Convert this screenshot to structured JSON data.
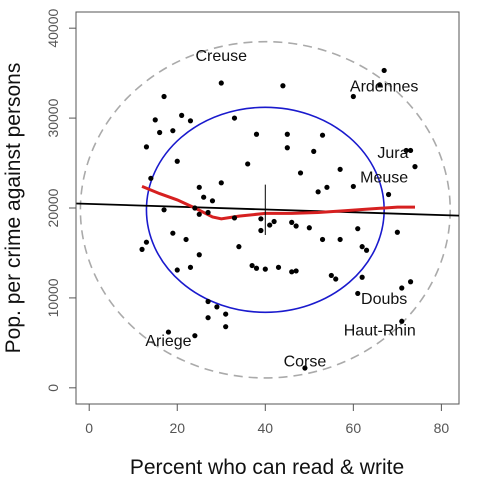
{
  "chart_data": {
    "type": "scatter",
    "title": "",
    "xlabel": "Percent who can read & write",
    "ylabel": "Pop. per crime against persons",
    "xlim": [
      -3,
      84
    ],
    "ylim": [
      -1800,
      41800
    ],
    "x_ticks": [
      0,
      20,
      40,
      60,
      80
    ],
    "y_ticks": [
      0,
      10000,
      20000,
      30000,
      40000
    ],
    "grid": false,
    "legend": "none",
    "points": [
      {
        "x": 12,
        "y": 15400
      },
      {
        "x": 13,
        "y": 16200
      },
      {
        "x": 13,
        "y": 26800
      },
      {
        "x": 14,
        "y": 23300
      },
      {
        "x": 15,
        "y": 29800
      },
      {
        "x": 16,
        "y": 28400
      },
      {
        "x": 17,
        "y": 32400
      },
      {
        "x": 17,
        "y": 19800
      },
      {
        "x": 18,
        "y": 6200
      },
      {
        "x": 19,
        "y": 28600
      },
      {
        "x": 19,
        "y": 17200
      },
      {
        "x": 20,
        "y": 25200
      },
      {
        "x": 20,
        "y": 13100
      },
      {
        "x": 21,
        "y": 30300
      },
      {
        "x": 22,
        "y": 16500
      },
      {
        "x": 23,
        "y": 13400
      },
      {
        "x": 23,
        "y": 29700
      },
      {
        "x": 24,
        "y": 20000
      },
      {
        "x": 24,
        "y": 5800
      },
      {
        "x": 25,
        "y": 22300
      },
      {
        "x": 25,
        "y": 19300
      },
      {
        "x": 25,
        "y": 14800
      },
      {
        "x": 26,
        "y": 21200
      },
      {
        "x": 27,
        "y": 7800
      },
      {
        "x": 27,
        "y": 9600
      },
      {
        "x": 27,
        "y": 19500
      },
      {
        "x": 28,
        "y": 20800
      },
      {
        "x": 29,
        "y": 9000
      },
      {
        "x": 30,
        "y": 33900
      },
      {
        "x": 30,
        "y": 22800
      },
      {
        "x": 31,
        "y": 6800
      },
      {
        "x": 31,
        "y": 8200
      },
      {
        "x": 33,
        "y": 30000
      },
      {
        "x": 33,
        "y": 18900
      },
      {
        "x": 34,
        "y": 15700
      },
      {
        "x": 36,
        "y": 24900
      },
      {
        "x": 37,
        "y": 13600
      },
      {
        "x": 38,
        "y": 13300
      },
      {
        "x": 38,
        "y": 28200
      },
      {
        "x": 39,
        "y": 18800
      },
      {
        "x": 39,
        "y": 17500
      },
      {
        "x": 40,
        "y": 13200
      },
      {
        "x": 41,
        "y": 18100
      },
      {
        "x": 42,
        "y": 18500
      },
      {
        "x": 43,
        "y": 13400
      },
      {
        "x": 44,
        "y": 33600
      },
      {
        "x": 45,
        "y": 28200
      },
      {
        "x": 45,
        "y": 26700
      },
      {
        "x": 46,
        "y": 12900
      },
      {
        "x": 46,
        "y": 18400
      },
      {
        "x": 47,
        "y": 13000
      },
      {
        "x": 47,
        "y": 18000
      },
      {
        "x": 48,
        "y": 23900
      },
      {
        "x": 49,
        "y": 2200
      },
      {
        "x": 50,
        "y": 17800
      },
      {
        "x": 51,
        "y": 26300
      },
      {
        "x": 52,
        "y": 21800
      },
      {
        "x": 53,
        "y": 28100
      },
      {
        "x": 53,
        "y": 16500
      },
      {
        "x": 54,
        "y": 22300
      },
      {
        "x": 55,
        "y": 12500
      },
      {
        "x": 56,
        "y": 12100
      },
      {
        "x": 57,
        "y": 24300
      },
      {
        "x": 57,
        "y": 16500
      },
      {
        "x": 60,
        "y": 32400
      },
      {
        "x": 60,
        "y": 22400
      },
      {
        "x": 61,
        "y": 17700
      },
      {
        "x": 61,
        "y": 10500
      },
      {
        "x": 62,
        "y": 12300
      },
      {
        "x": 62,
        "y": 15700
      },
      {
        "x": 63,
        "y": 15300
      },
      {
        "x": 66,
        "y": 33700
      },
      {
        "x": 67,
        "y": 35300
      },
      {
        "x": 68,
        "y": 21500
      },
      {
        "x": 70,
        "y": 17300
      },
      {
        "x": 71,
        "y": 11100
      },
      {
        "x": 71,
        "y": 7400
      },
      {
        "x": 72,
        "y": 26400
      },
      {
        "x": 73,
        "y": 11800
      },
      {
        "x": 73,
        "y": 26400
      },
      {
        "x": 74,
        "y": 24600
      }
    ],
    "regression_line": {
      "x": [
        -3,
        84
      ],
      "y": [
        20500,
        19150
      ],
      "color": "#000000"
    },
    "loess_smooth": {
      "x": [
        12,
        16,
        20,
        24,
        28,
        30,
        34,
        40,
        46,
        52,
        58,
        64,
        70,
        74
      ],
      "y": [
        22400,
        21600,
        20900,
        20000,
        19000,
        18800,
        19100,
        19400,
        19400,
        19500,
        19700,
        19900,
        20100,
        20100
      ],
      "color": "#d62020"
    },
    "mean_cross": {
      "x": 40,
      "y": 19800,
      "sd_x": 0,
      "sd_y": 2800
    },
    "ellipses": [
      {
        "cx": 40,
        "cy": 19800,
        "rx": 27,
        "ry": 11400,
        "style": "solid",
        "color": "#1a1acd"
      },
      {
        "cx": 40,
        "cy": 19800,
        "rx": 42,
        "ry": 18700,
        "style": "dashed",
        "color": "#aaaaaa"
      }
    ],
    "labeled_points": [
      {
        "name": "Creuse",
        "x": 30,
        "y": 36900
      },
      {
        "name": "Ardennes",
        "x": 67,
        "y": 33500
      },
      {
        "name": "Jura",
        "x": 69,
        "y": 26100
      },
      {
        "name": "Meuse",
        "x": 67,
        "y": 23400
      },
      {
        "name": "Doubs",
        "x": 67,
        "y": 9900
      },
      {
        "name": "Haut-Rhin",
        "x": 66,
        "y": 6400
      },
      {
        "name": "Ariege",
        "x": 18,
        "y": 5200
      },
      {
        "name": "Corse",
        "x": 49,
        "y": 2900
      }
    ]
  },
  "colors": {
    "points": "#000000",
    "axis": "#555555"
  }
}
